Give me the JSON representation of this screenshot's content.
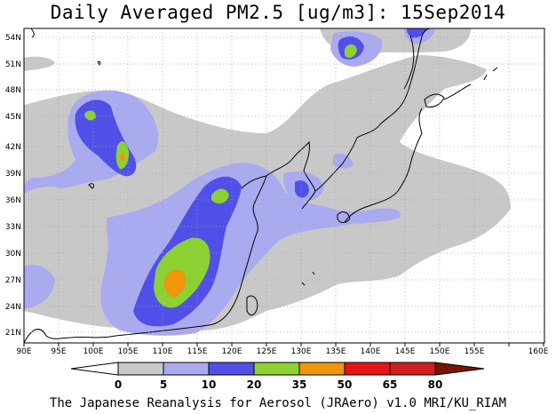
{
  "title": "Daily Averaged PM2.5 [ug/m3]: 15Sep2014",
  "footer": "The Japanese Reanalysis for Aerosol (JRAero) v1.0 MRI/KU_RIAM",
  "axes": {
    "lon_labels": [
      "90E",
      "95E",
      "100E",
      "105E",
      "110E",
      "115E",
      "120E",
      "125E",
      "130E",
      "135E",
      "140E",
      "145E",
      "150E",
      "155E",
      "160E"
    ],
    "lat_labels": [
      "21N",
      "24N",
      "27N",
      "30N",
      "33N",
      "36N",
      "39N",
      "42N",
      "45N",
      "48N",
      "51N",
      "54N"
    ]
  },
  "colorbar": {
    "levels": [
      "0",
      "5",
      "10",
      "20",
      "35",
      "50",
      "65",
      "80"
    ],
    "colors": [
      "#ffffff",
      "#c8c8c8",
      "#aaaaf0",
      "#5050e8",
      "#8cd232",
      "#f0960a",
      "#e61414",
      "#781400"
    ]
  }
}
